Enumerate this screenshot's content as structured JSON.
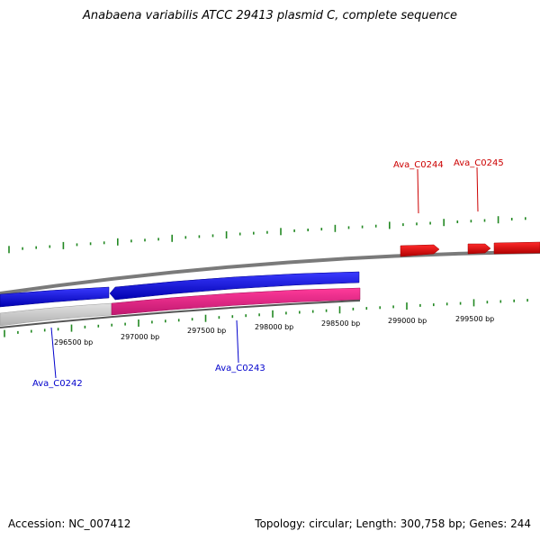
{
  "title": "Anabaena variabilis ATCC 29413 plasmid C, complete sequence",
  "footer": {
    "accession": "Accession: NC_007412",
    "summary": "Topology: circular; Length: 300,758 bp; Genes: 244"
  },
  "scale": {
    "ticks": [
      {
        "bp": 296500,
        "label": "296500 bp"
      },
      {
        "bp": 297000,
        "label": "297000 bp"
      },
      {
        "bp": 297500,
        "label": "297500 bp"
      },
      {
        "bp": 298000,
        "label": "298000 bp"
      },
      {
        "bp": 298500,
        "label": "298500 bp"
      },
      {
        "bp": 299000,
        "label": "299000 bp"
      },
      {
        "bp": 299500,
        "label": "299500 bp"
      }
    ]
  },
  "genes": [
    {
      "id": "Ava_C0242",
      "label": "Ava_C0242",
      "strand": "reverse",
      "color": "#0000dd"
    },
    {
      "id": "Ava_C0243",
      "label": "Ava_C0243",
      "strand": "reverse",
      "color": "#0000dd"
    },
    {
      "id": "Ava_C0244",
      "label": "Ava_C0244",
      "strand": "forward",
      "color": "#dd0000"
    },
    {
      "id": "Ava_C0245",
      "label": "Ava_C0245",
      "strand": "forward",
      "color": "#dd0000"
    }
  ],
  "colors": {
    "forward_gene": "#ee0000",
    "reverse_gene": "#0000ee",
    "cds_pink": "#ee2288",
    "cds_gray": "#c8c8c8",
    "backbone": "#888888",
    "tick_green": "#228822"
  }
}
